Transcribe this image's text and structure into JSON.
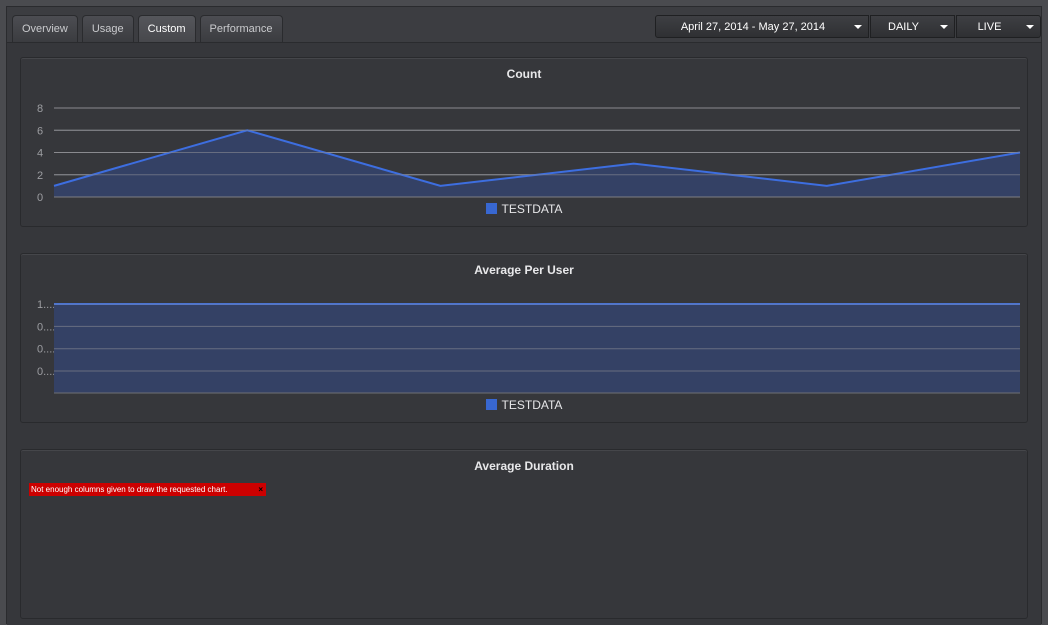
{
  "tabs": [
    {
      "label": "Overview",
      "active": false
    },
    {
      "label": "Usage",
      "active": false
    },
    {
      "label": "Custom",
      "active": true
    },
    {
      "label": "Performance",
      "active": false
    }
  ],
  "controls": {
    "date_range": "April 27, 2014 - May 27, 2014",
    "period": "DAILY",
    "mode": "LIVE"
  },
  "panels": {
    "count": {
      "title": "Count"
    },
    "avg_per_user": {
      "title": "Average Per User"
    },
    "avg_duration": {
      "title": "Average Duration",
      "error_message": "Not enough columns given to draw the requested chart.",
      "error_close": "×"
    }
  },
  "colors": {
    "series_line": "#3d6ee0",
    "series_fill": "#34426a",
    "grid": "#8a8b8f",
    "error": "#cc0000"
  },
  "chart_data": [
    {
      "type": "area",
      "title": "Count",
      "legend": [
        "TESTDATA"
      ],
      "legend_position": "bottom",
      "y_ticks": [
        "0",
        "2",
        "4",
        "6",
        "8"
      ],
      "ylim": [
        0,
        8
      ],
      "grid": true,
      "series": [
        {
          "name": "TESTDATA",
          "values": [
            1,
            6,
            1,
            3,
            1,
            4
          ]
        }
      ]
    },
    {
      "type": "area",
      "title": "Average Per User",
      "legend": [
        "TESTDATA"
      ],
      "legend_position": "bottom",
      "y_ticks": [
        "0....",
        "0....",
        "0....",
        "1...."
      ],
      "ylim": [
        0,
        1.2
      ],
      "grid": true,
      "series": [
        {
          "name": "TESTDATA",
          "values": [
            1,
            1,
            1,
            1,
            1,
            1
          ]
        }
      ]
    }
  ]
}
